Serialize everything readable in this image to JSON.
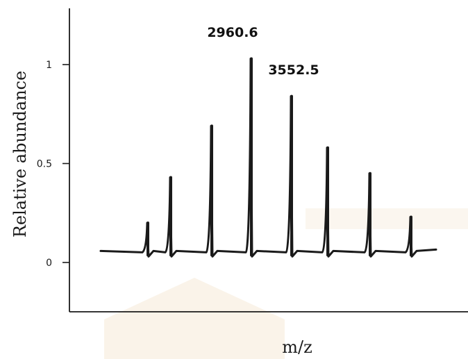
{
  "chart_data": {
    "type": "line",
    "title": "",
    "xlabel": "m/z",
    "ylabel": "Relative abundance",
    "yticks": [
      {
        "value": 0,
        "label": "0"
      },
      {
        "value": 0.5,
        "label": "0.5"
      },
      {
        "value": 1,
        "label": "1"
      }
    ],
    "ylim": [
      -0.25,
      1.3
    ],
    "grid": false,
    "baseline": 0.06,
    "series": [
      {
        "values": [
          {
            "peak": 1,
            "height": 0.2
          },
          {
            "peak": 2,
            "height": 0.43
          },
          {
            "peak": 3,
            "height": 0.69
          },
          {
            "peak": 4,
            "height": 1.03
          },
          {
            "peak": 5,
            "height": 0.84
          },
          {
            "peak": 6,
            "height": 0.58
          },
          {
            "peak": 7,
            "height": 0.45
          },
          {
            "peak": 8,
            "height": 0.23
          }
        ]
      }
    ],
    "annotations": [
      {
        "peak": 4,
        "text": "2960.6"
      },
      {
        "peak": 5,
        "text": "3552.5"
      }
    ],
    "colors": {
      "line": "#1a1a1a",
      "axis": "#1a1a1a",
      "watermark": "#f0dcc0"
    }
  }
}
